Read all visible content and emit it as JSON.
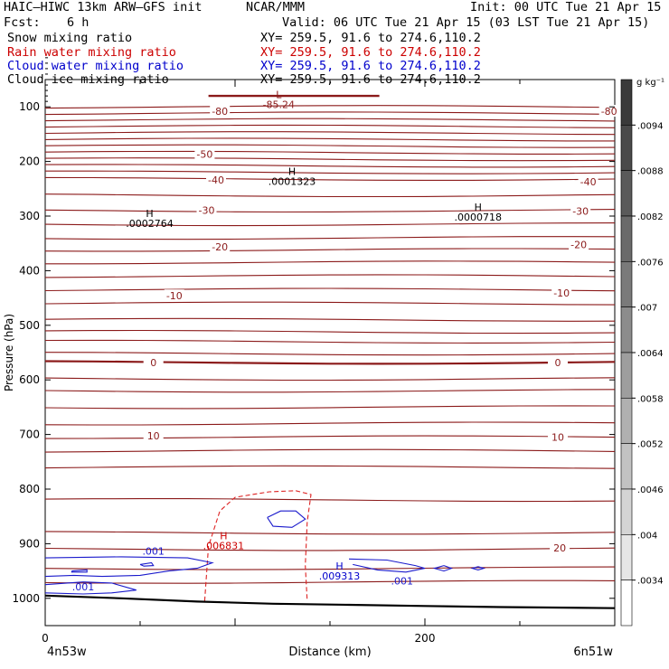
{
  "header": {
    "model": "HAIC–HIWC 13km ARW–GFS init",
    "org": "NCAR/MMM",
    "init": "Init: 00 UTC Tue 21 Apr 15",
    "fcst_label": "Fcst:",
    "fcst_value": "6 h",
    "valid": "Valid: 06 UTC Tue 21 Apr 15 (03 LST Tue 21 Apr 15)",
    "fields": [
      {
        "name": "Snow mixing ratio",
        "xy": "XY= 259.5, 91.6 to 274.6,110.2",
        "color": "#000000"
      },
      {
        "name": "Rain water mixing ratio",
        "xy": "XY= 259.5, 91.6 to 274.6,110.2",
        "color": "#cc0000"
      },
      {
        "name": "Cloud water mixing ratio",
        "xy": "XY= 259.5, 91.6 to 274.6,110.2",
        "color": "#0000cc"
      },
      {
        "name": "Cloud ice mixing ratio",
        "xy": "XY= 259.5, 91.6 to 274.6,110.2",
        "color": "#000000"
      }
    ]
  },
  "colors": {
    "temperature": "#8b1a1a",
    "rain": "#dd2222",
    "cloud_water": "#1a1acc",
    "terrain": "#000000"
  },
  "chart_data": {
    "type": "line",
    "xlabel": "Distance (km)",
    "ylabel": "Pressure (hPa)",
    "xlim": [
      0,
      300
    ],
    "ylim": [
      1050,
      50
    ],
    "xticks": [
      0,
      200
    ],
    "yticks": [
      100,
      200,
      300,
      400,
      500,
      600,
      700,
      800,
      900,
      1000
    ],
    "endpoints": {
      "left": "4n53w",
      "right": "6n51w"
    },
    "colorbar": {
      "unit": "g kg⁻¹",
      "ticks": [
        ".0094",
        ".0088",
        ".0082",
        ".0076",
        ".007",
        ".0064",
        ".0058",
        ".0052",
        ".0046",
        ".004",
        ".0034"
      ]
    },
    "temperature_labels": [
      {
        "text": "-80",
        "x": 92,
        "p": 108
      },
      {
        "text": "-80",
        "x": 297,
        "p": 108
      },
      {
        "text": "-50",
        "x": 84,
        "p": 187
      },
      {
        "text": "-40",
        "x": 90,
        "p": 234
      },
      {
        "text": "-40",
        "x": 286,
        "p": 237
      },
      {
        "text": "-30",
        "x": 85,
        "p": 289
      },
      {
        "text": "-30",
        "x": 282,
        "p": 291
      },
      {
        "text": "-20",
        "x": 92,
        "p": 356
      },
      {
        "text": "-20",
        "x": 281,
        "p": 352
      },
      {
        "text": "-10",
        "x": 68,
        "p": 446
      },
      {
        "text": "-10",
        "x": 272,
        "p": 441
      },
      {
        "text": "0",
        "x": 57,
        "p": 568
      },
      {
        "text": "0",
        "x": 270,
        "p": 568
      },
      {
        "text": "10",
        "x": 57,
        "p": 702
      },
      {
        "text": "10",
        "x": 270,
        "p": 705
      },
      {
        "text": "20",
        "x": 271,
        "p": 908
      }
    ],
    "extrema": [
      {
        "symbol": "L",
        "value": "-85.24",
        "x": 123,
        "p": 84,
        "color": "#8b1a1a"
      },
      {
        "symbol": "H",
        "value": ".0001323",
        "x": 130,
        "p": 225,
        "color": "#000000"
      },
      {
        "symbol": "H",
        "value": ".0002764",
        "x": 55,
        "p": 302,
        "color": "#000000"
      },
      {
        "symbol": "H",
        "value": ".0000718",
        "x": 228,
        "p": 290,
        "color": "#000000"
      },
      {
        "symbol": "H",
        "value": ".006831",
        "x": 94,
        "p": 892,
        "color": "#cc0000"
      },
      {
        "symbol": "H",
        "value": ".009313",
        "x": 155,
        "p": 947,
        "color": "#0000cc"
      }
    ],
    "cloud_water_labels": [
      {
        "text": ".001",
        "x": 57,
        "p": 913
      },
      {
        "text": ".001",
        "x": 20,
        "p": 979
      },
      {
        "text": ".001",
        "x": 188,
        "p": 968
      }
    ]
  }
}
